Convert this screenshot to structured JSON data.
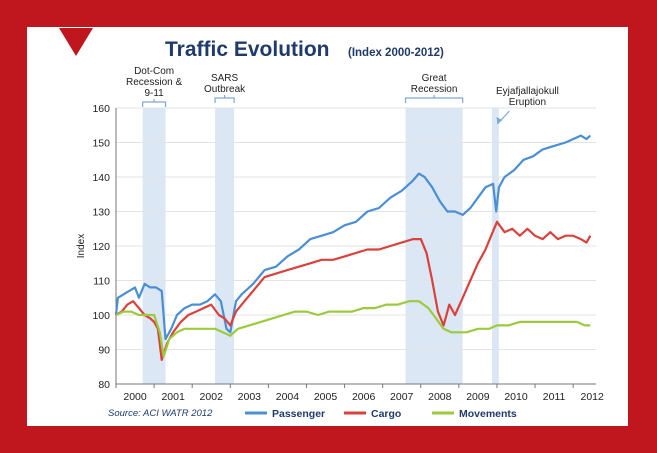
{
  "chart_data": {
    "type": "line",
    "title": "Traffic Evolution",
    "subtitle": "(Index 2000-2012)",
    "ylabel": "Index",
    "xlabel": "",
    "xlim": [
      2000,
      2012.6
    ],
    "ylim": [
      80,
      160
    ],
    "yticks": [
      80,
      90,
      100,
      110,
      120,
      130,
      140,
      150,
      160
    ],
    "xtick_labels": [
      "2000",
      "2001",
      "2002",
      "2003",
      "2004",
      "2005",
      "2006",
      "2007",
      "2008",
      "2009",
      "2010",
      "2011",
      "2012"
    ],
    "source": "Source: ACI WATR 2012",
    "legend_position": "bottom",
    "colors": {
      "Passenger": "#4a8fd4",
      "Cargo": "#d9423c",
      "Movements": "#9bcb3c"
    },
    "events": [
      {
        "label_lines": [
          "Dot-Com",
          "Recession &",
          "9-11"
        ],
        "start": 2000.7,
        "end": 2001.3
      },
      {
        "label_lines": [
          "SARS",
          "Outbreak"
        ],
        "start": 2002.6,
        "end": 2003.1
      },
      {
        "label_lines": [
          "Great",
          "Recession"
        ],
        "start": 2007.6,
        "end": 2009.1
      },
      {
        "label_lines": [
          "Eyjafjallajokull",
          "Eruption"
        ],
        "start": 2009.87,
        "end": 2010.05
      }
    ],
    "series": [
      {
        "name": "Passenger",
        "points": [
          [
            2000,
            100
          ],
          [
            2000.05,
            105
          ],
          [
            2000.2,
            106
          ],
          [
            2000.35,
            107
          ],
          [
            2000.5,
            108
          ],
          [
            2000.6,
            105
          ],
          [
            2000.75,
            109
          ],
          [
            2000.9,
            108
          ],
          [
            2001.05,
            108
          ],
          [
            2001.2,
            107
          ],
          [
            2001.3,
            93
          ],
          [
            2001.45,
            96
          ],
          [
            2001.6,
            100
          ],
          [
            2001.8,
            102
          ],
          [
            2002.0,
            103
          ],
          [
            2002.2,
            103
          ],
          [
            2002.4,
            104
          ],
          [
            2002.6,
            106
          ],
          [
            2002.75,
            104
          ],
          [
            2002.9,
            96
          ],
          [
            2003.0,
            95
          ],
          [
            2003.15,
            104
          ],
          [
            2003.3,
            106
          ],
          [
            2003.6,
            109
          ],
          [
            2003.9,
            113
          ],
          [
            2004.2,
            114
          ],
          [
            2004.5,
            117
          ],
          [
            2004.8,
            119
          ],
          [
            2005.1,
            122
          ],
          [
            2005.4,
            123
          ],
          [
            2005.7,
            124
          ],
          [
            2006.0,
            126
          ],
          [
            2006.3,
            127
          ],
          [
            2006.6,
            130
          ],
          [
            2006.9,
            131
          ],
          [
            2007.2,
            134
          ],
          [
            2007.5,
            136
          ],
          [
            2007.8,
            139
          ],
          [
            2007.95,
            141
          ],
          [
            2008.1,
            140
          ],
          [
            2008.3,
            137
          ],
          [
            2008.5,
            133
          ],
          [
            2008.7,
            130
          ],
          [
            2008.9,
            130
          ],
          [
            2009.1,
            129
          ],
          [
            2009.3,
            131
          ],
          [
            2009.5,
            134
          ],
          [
            2009.7,
            137
          ],
          [
            2009.9,
            138
          ],
          [
            2009.98,
            130
          ],
          [
            2010.05,
            137
          ],
          [
            2010.2,
            140
          ],
          [
            2010.45,
            142
          ],
          [
            2010.7,
            145
          ],
          [
            2010.95,
            146
          ],
          [
            2011.2,
            148
          ],
          [
            2011.5,
            149
          ],
          [
            2011.8,
            150
          ],
          [
            2012.0,
            151
          ],
          [
            2012.2,
            152
          ],
          [
            2012.35,
            151
          ],
          [
            2012.45,
            152
          ]
        ]
      },
      {
        "name": "Cargo",
        "points": [
          [
            2000,
            100
          ],
          [
            2000.15,
            101
          ],
          [
            2000.3,
            103
          ],
          [
            2000.45,
            104
          ],
          [
            2000.6,
            102
          ],
          [
            2000.75,
            100
          ],
          [
            2000.9,
            99
          ],
          [
            2001.0,
            98
          ],
          [
            2001.1,
            96
          ],
          [
            2001.2,
            87
          ],
          [
            2001.35,
            92
          ],
          [
            2001.5,
            95
          ],
          [
            2001.7,
            98
          ],
          [
            2001.9,
            100
          ],
          [
            2002.1,
            101
          ],
          [
            2002.3,
            102
          ],
          [
            2002.5,
            103
          ],
          [
            2002.7,
            100
          ],
          [
            2002.85,
            99
          ],
          [
            2003.0,
            97
          ],
          [
            2003.15,
            101
          ],
          [
            2003.3,
            103
          ],
          [
            2003.6,
            107
          ],
          [
            2003.9,
            111
          ],
          [
            2004.2,
            112
          ],
          [
            2004.5,
            113
          ],
          [
            2004.8,
            114
          ],
          [
            2005.1,
            115
          ],
          [
            2005.4,
            116
          ],
          [
            2005.7,
            116
          ],
          [
            2006.0,
            117
          ],
          [
            2006.3,
            118
          ],
          [
            2006.6,
            119
          ],
          [
            2006.9,
            119
          ],
          [
            2007.2,
            120
          ],
          [
            2007.5,
            121
          ],
          [
            2007.8,
            122
          ],
          [
            2008.0,
            122
          ],
          [
            2008.15,
            118
          ],
          [
            2008.3,
            110
          ],
          [
            2008.45,
            101
          ],
          [
            2008.6,
            97
          ],
          [
            2008.75,
            103
          ],
          [
            2008.9,
            100
          ],
          [
            2009.1,
            105
          ],
          [
            2009.3,
            110
          ],
          [
            2009.5,
            115
          ],
          [
            2009.7,
            119
          ],
          [
            2009.85,
            123
          ],
          [
            2010.0,
            127
          ],
          [
            2010.2,
            124
          ],
          [
            2010.4,
            125
          ],
          [
            2010.6,
            123
          ],
          [
            2010.8,
            125
          ],
          [
            2011.0,
            123
          ],
          [
            2011.2,
            122
          ],
          [
            2011.4,
            124
          ],
          [
            2011.6,
            122
          ],
          [
            2011.8,
            123
          ],
          [
            2012.0,
            123
          ],
          [
            2012.2,
            122
          ],
          [
            2012.35,
            121
          ],
          [
            2012.45,
            123
          ]
        ]
      },
      {
        "name": "Movements",
        "points": [
          [
            2000,
            100
          ],
          [
            2000.2,
            101
          ],
          [
            2000.4,
            101
          ],
          [
            2000.6,
            100
          ],
          [
            2000.8,
            100
          ],
          [
            2001.0,
            100
          ],
          [
            2001.15,
            95
          ],
          [
            2001.25,
            88
          ],
          [
            2001.4,
            93
          ],
          [
            2001.6,
            95
          ],
          [
            2001.8,
            96
          ],
          [
            2002.0,
            96
          ],
          [
            2002.3,
            96
          ],
          [
            2002.6,
            96
          ],
          [
            2002.8,
            95
          ],
          [
            2003.0,
            94
          ],
          [
            2003.2,
            96
          ],
          [
            2003.5,
            97
          ],
          [
            2003.8,
            98
          ],
          [
            2004.1,
            99
          ],
          [
            2004.4,
            100
          ],
          [
            2004.7,
            101
          ],
          [
            2005.0,
            101
          ],
          [
            2005.3,
            100
          ],
          [
            2005.6,
            101
          ],
          [
            2005.9,
            101
          ],
          [
            2006.2,
            101
          ],
          [
            2006.5,
            102
          ],
          [
            2006.8,
            102
          ],
          [
            2007.1,
            103
          ],
          [
            2007.4,
            103
          ],
          [
            2007.7,
            104
          ],
          [
            2007.95,
            104
          ],
          [
            2008.2,
            102
          ],
          [
            2008.4,
            99
          ],
          [
            2008.6,
            96
          ],
          [
            2008.8,
            95
          ],
          [
            2009.0,
            95
          ],
          [
            2009.2,
            95
          ],
          [
            2009.5,
            96
          ],
          [
            2009.8,
            96
          ],
          [
            2010.0,
            97
          ],
          [
            2010.3,
            97
          ],
          [
            2010.6,
            98
          ],
          [
            2010.9,
            98
          ],
          [
            2011.2,
            98
          ],
          [
            2011.5,
            98
          ],
          [
            2011.8,
            98
          ],
          [
            2012.1,
            98
          ],
          [
            2012.3,
            97
          ],
          [
            2012.45,
            97
          ]
        ]
      }
    ]
  }
}
